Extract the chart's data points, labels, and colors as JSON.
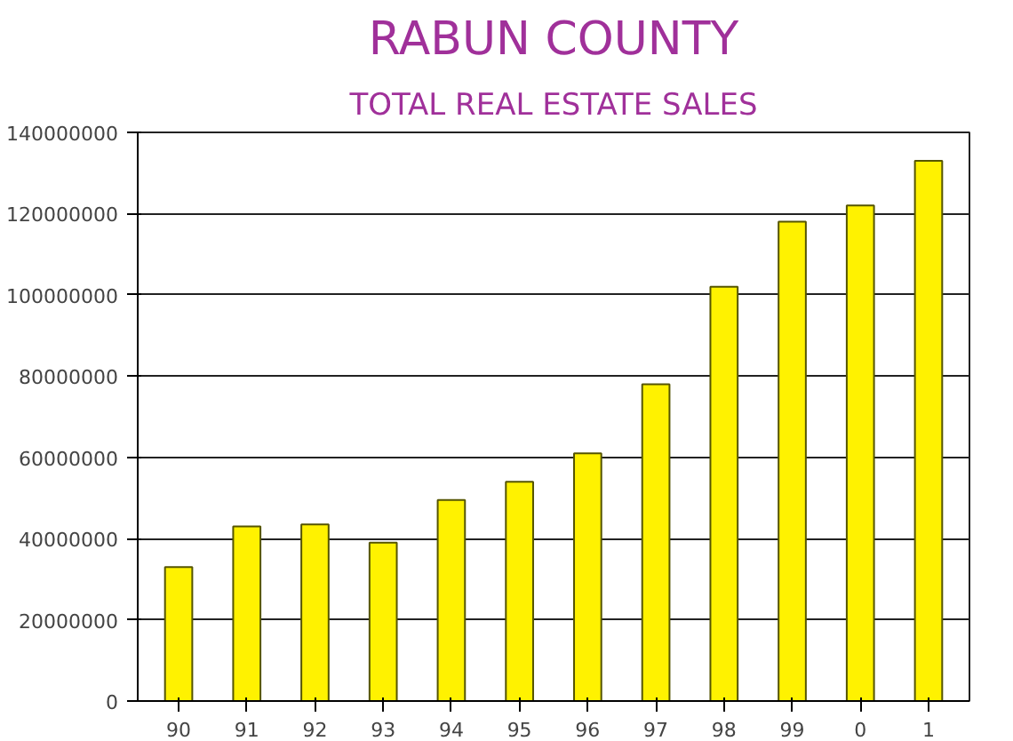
{
  "chart_data": {
    "type": "bar",
    "title": "RABUN COUNTY",
    "subtitle": "TOTAL REAL ESTATE SALES",
    "categories": [
      "90",
      "91",
      "92",
      "93",
      "94",
      "95",
      "96",
      "97",
      "98",
      "99",
      "0",
      "1"
    ],
    "values": [
      33000000,
      43000000,
      43500000,
      39000000,
      49500000,
      54000000,
      61000000,
      78000000,
      102000000,
      118000000,
      122000000,
      133000000
    ],
    "color": "#fff200",
    "ylim": [
      0,
      140000000
    ],
    "yticks": [
      0,
      20000000,
      40000000,
      60000000,
      80000000,
      100000000,
      120000000,
      140000000
    ],
    "grid": "y"
  }
}
